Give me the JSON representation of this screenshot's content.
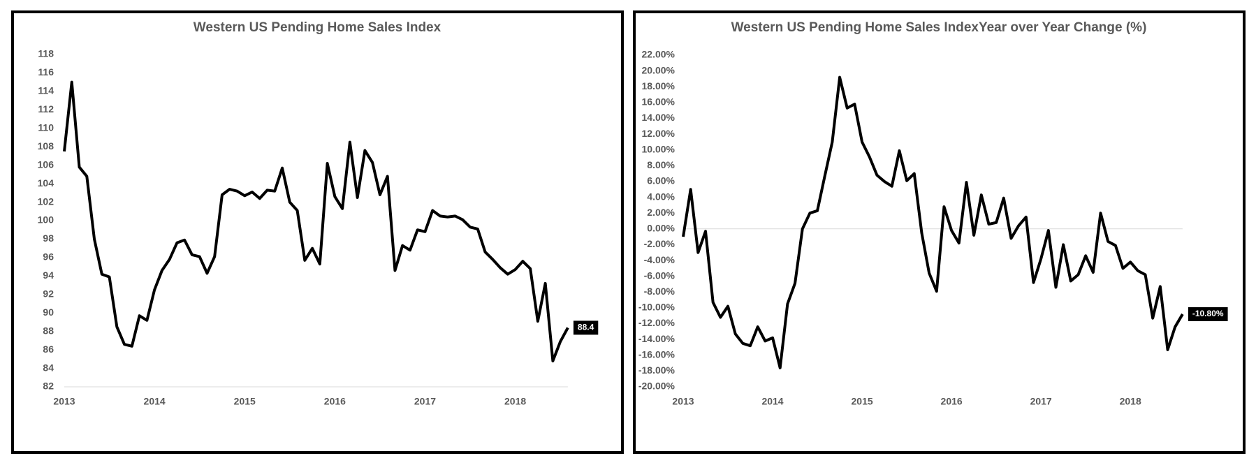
{
  "chart_data": [
    {
      "type": "line",
      "title": "Western US Pending Home Sales Index",
      "categories": [
        "2013",
        null,
        null,
        null,
        null,
        null,
        null,
        null,
        null,
        null,
        null,
        null,
        "2014",
        null,
        null,
        null,
        null,
        null,
        null,
        null,
        null,
        null,
        null,
        null,
        "2015",
        null,
        null,
        null,
        null,
        null,
        null,
        null,
        null,
        null,
        null,
        null,
        "2016",
        null,
        null,
        null,
        null,
        null,
        null,
        null,
        null,
        null,
        null,
        null,
        "2017",
        null,
        null,
        null,
        null,
        null,
        null,
        null,
        null,
        null,
        null,
        null,
        "2018",
        null,
        null,
        null,
        null,
        null,
        null,
        null
      ],
      "values": [
        107.5,
        115.0,
        105.8,
        104.8,
        98.0,
        94.2,
        93.9,
        88.5,
        86.6,
        86.4,
        89.7,
        89.2,
        92.5,
        94.6,
        95.8,
        97.6,
        97.9,
        96.3,
        96.1,
        94.3,
        96.1,
        102.8,
        103.4,
        103.2,
        102.7,
        103.1,
        102.4,
        103.3,
        103.2,
        105.7,
        102.0,
        101.1,
        95.7,
        97.0,
        95.3,
        106.2,
        102.6,
        101.3,
        108.5,
        102.5,
        107.6,
        106.3,
        102.8,
        104.8,
        94.6,
        97.3,
        96.8,
        99.0,
        98.8,
        101.1,
        100.5,
        100.4,
        100.5,
        100.1,
        99.3,
        99.1,
        96.6,
        95.8,
        94.9,
        94.2,
        94.7,
        95.6,
        94.8,
        89.1,
        93.2,
        84.8,
        86.9,
        88.4
      ],
      "color": "#000000",
      "data_labels": "last",
      "ylim": [
        82,
        118
      ],
      "yticks": [
        82,
        84,
        86,
        88,
        90,
        92,
        94,
        96,
        98,
        100,
        102,
        104,
        106,
        108,
        110,
        112,
        114,
        116,
        118
      ],
      "grid": false
    },
    {
      "type": "line",
      "title": "Western US Pending Home Sales IndexYear over Year Change (%)",
      "categories": [
        "2013",
        null,
        null,
        null,
        null,
        null,
        null,
        null,
        null,
        null,
        null,
        null,
        "2014",
        null,
        null,
        null,
        null,
        null,
        null,
        null,
        null,
        null,
        null,
        null,
        "2015",
        null,
        null,
        null,
        null,
        null,
        null,
        null,
        null,
        null,
        null,
        null,
        "2016",
        null,
        null,
        null,
        null,
        null,
        null,
        null,
        null,
        null,
        null,
        null,
        "2017",
        null,
        null,
        null,
        null,
        null,
        null,
        null,
        null,
        null,
        null,
        null,
        "2018",
        null,
        null,
        null,
        null,
        null,
        null,
        null
      ],
      "values": [
        -1.0,
        5.0,
        -3.0,
        -0.3,
        -9.3,
        -11.2,
        -9.8,
        -13.3,
        -14.5,
        -14.8,
        -12.4,
        -14.2,
        -13.8,
        -17.6,
        -9.5,
        -6.9,
        0.0,
        2.0,
        2.3,
        6.7,
        11.0,
        19.2,
        15.3,
        15.8,
        11.0,
        9.1,
        6.8,
        6.0,
        5.4,
        9.9,
        6.1,
        7.0,
        -0.5,
        -5.6,
        -7.9,
        2.8,
        -0.2,
        -1.8,
        5.9,
        -0.8,
        4.3,
        0.6,
        0.8,
        3.9,
        -1.2,
        0.4,
        1.5,
        -6.8,
        -3.8,
        -0.2,
        -7.4,
        -2.0,
        -6.6,
        -5.8,
        -3.4,
        -5.5,
        2.0,
        -1.6,
        -2.1,
        -5.0,
        -4.2,
        -5.3,
        -5.8,
        -11.3,
        -7.3,
        -15.3,
        -12.4,
        -10.8
      ],
      "value_labels": [
        null,
        null,
        null,
        null,
        null,
        null,
        null,
        null,
        null,
        null,
        null,
        null,
        null,
        null,
        null,
        null,
        null,
        null,
        null,
        null,
        null,
        null,
        null,
        null,
        null,
        null,
        null,
        null,
        null,
        null,
        null,
        null,
        null,
        null,
        null,
        null,
        null,
        null,
        null,
        null,
        null,
        null,
        null,
        null,
        null,
        null,
        null,
        null,
        null,
        null,
        null,
        null,
        null,
        null,
        null,
        null,
        null,
        null,
        null,
        null,
        null,
        null,
        null,
        null,
        null,
        null,
        null,
        "-10.80%"
      ],
      "color": "#000000",
      "data_labels": "last",
      "ylim": [
        -20,
        22
      ],
      "yticks": [
        {
          "value": -20,
          "label": "-20.00%"
        },
        {
          "value": -18,
          "label": "-18.00%"
        },
        {
          "value": -16,
          "label": "-16.00%"
        },
        {
          "value": -14,
          "label": "-14.00%"
        },
        {
          "value": -12,
          "label": "-12.00%"
        },
        {
          "value": -10,
          "label": "-10.00%"
        },
        {
          "value": -8,
          "label": "-8.00%"
        },
        {
          "value": -6,
          "label": "-6.00%"
        },
        {
          "value": -4,
          "label": "-4.00%"
        },
        {
          "value": -2,
          "label": "-2.00%"
        },
        {
          "value": 0,
          "label": "0.00%"
        },
        {
          "value": 2,
          "label": "2.00%"
        },
        {
          "value": 4,
          "label": "4.00%"
        },
        {
          "value": 6,
          "label": "6.00%"
        },
        {
          "value": 8,
          "label": "8.00%"
        },
        {
          "value": 10,
          "label": "10.00%"
        },
        {
          "value": 12,
          "label": "12.00%"
        },
        {
          "value": 14,
          "label": "14.00%"
        },
        {
          "value": 16,
          "label": "16.00%"
        },
        {
          "value": 18,
          "label": "18.00%"
        },
        {
          "value": 20,
          "label": "20.00%"
        },
        {
          "value": 22,
          "label": "22.00%"
        }
      ],
      "grid": false
    }
  ]
}
